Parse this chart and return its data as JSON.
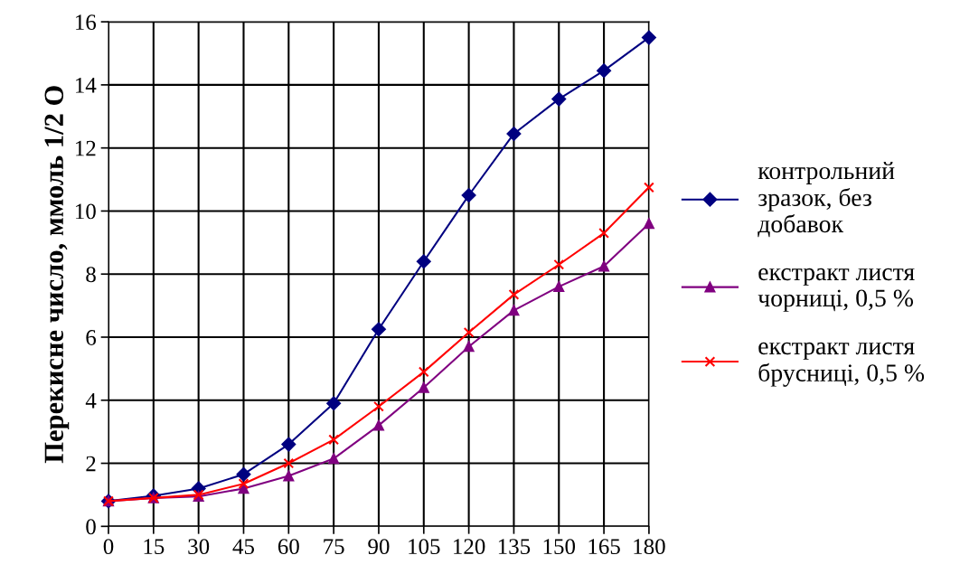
{
  "chart_data": {
    "type": "line",
    "ylabel": "Перекисне число, ммоль 1/2 О",
    "x": [
      0,
      15,
      30,
      45,
      60,
      75,
      90,
      105,
      120,
      135,
      150,
      165,
      180
    ],
    "series": [
      {
        "name": "контрольний\nзразок, без\nдобавок",
        "color": "#000080",
        "marker": "diamond",
        "values": [
          0.8,
          0.97,
          1.2,
          1.65,
          2.6,
          3.9,
          6.25,
          8.4,
          10.5,
          12.45,
          13.55,
          14.45,
          15.5
        ]
      },
      {
        "name": "екстракт листя\nчорниці, 0,5 %",
        "color": "#800080",
        "marker": "triangle",
        "values": [
          0.8,
          0.9,
          0.95,
          1.2,
          1.6,
          2.15,
          3.2,
          4.4,
          5.7,
          6.85,
          7.6,
          8.25,
          9.6
        ]
      },
      {
        "name": "екстракт листя\nбрусниці, 0,5 %",
        "color": "#ff0000",
        "marker": "cross",
        "values": [
          0.8,
          0.9,
          1.0,
          1.35,
          2.0,
          2.75,
          3.8,
          4.9,
          6.15,
          7.35,
          8.3,
          9.3,
          10.75
        ]
      }
    ],
    "xlim": [
      0,
      180
    ],
    "xticks": [
      0,
      15,
      30,
      45,
      60,
      75,
      90,
      105,
      120,
      135,
      150,
      165,
      180
    ],
    "ylim": [
      0,
      16
    ],
    "yticks": [
      0,
      2,
      4,
      6,
      8,
      10,
      12,
      14,
      16
    ],
    "grid": true,
    "legend": "right",
    "line_style": "solid"
  }
}
